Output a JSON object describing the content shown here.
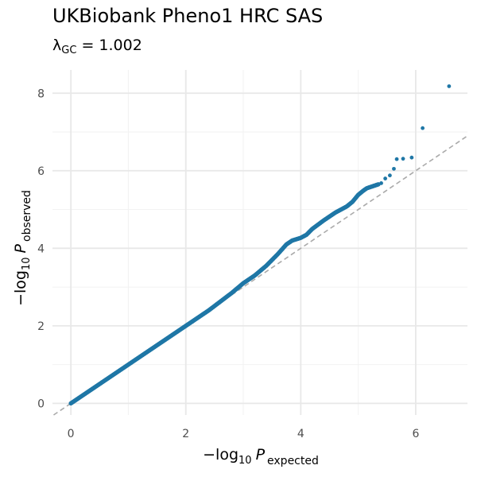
{
  "chart_data": {
    "type": "scatter",
    "title": "UKBiobank Pheno1 HRC SAS",
    "subtitle": {
      "symbol": "λ",
      "subscript": "GC",
      "value": "= 1.002"
    },
    "xlabel": {
      "prefix": "−log",
      "base": "10",
      "var": "P",
      "subscript": "expected"
    },
    "ylabel": {
      "prefix": "−log",
      "base": "10",
      "var": "P",
      "subscript": "observed"
    },
    "xlim": [
      -0.32,
      6.9
    ],
    "ylim": [
      -0.3,
      8.6
    ],
    "x_ticks": [
      0,
      2,
      4,
      6
    ],
    "y_ticks": [
      0,
      2,
      4,
      6,
      8
    ],
    "grid": true,
    "reference_line": {
      "slope": 1,
      "intercept": 0,
      "style": "dashed",
      "color": "#aaaaaa"
    },
    "point_color": "#1f77a6",
    "dense_series": [
      [
        0,
        0
      ],
      [
        0.5,
        0.5
      ],
      [
        1.0,
        1.0
      ],
      [
        1.5,
        1.5
      ],
      [
        2.0,
        2.0
      ],
      [
        2.4,
        2.4
      ],
      [
        2.8,
        2.85
      ],
      [
        3.0,
        3.1
      ],
      [
        3.2,
        3.3
      ],
      [
        3.4,
        3.55
      ],
      [
        3.6,
        3.85
      ],
      [
        3.75,
        4.1
      ],
      [
        3.85,
        4.2
      ],
      [
        4.0,
        4.27
      ],
      [
        4.1,
        4.35
      ],
      [
        4.2,
        4.5
      ],
      [
        4.4,
        4.72
      ],
      [
        4.6,
        4.92
      ],
      [
        4.8,
        5.08
      ],
      [
        4.9,
        5.2
      ],
      [
        5.0,
        5.38
      ],
      [
        5.1,
        5.5
      ],
      [
        5.15,
        5.55
      ],
      [
        5.25,
        5.6
      ],
      [
        5.35,
        5.65
      ]
    ],
    "sparse_points": [
      [
        5.4,
        5.68
      ],
      [
        5.47,
        5.8
      ],
      [
        5.55,
        5.88
      ],
      [
        5.62,
        6.05
      ],
      [
        5.67,
        6.3
      ],
      [
        5.78,
        6.31
      ],
      [
        5.93,
        6.34
      ],
      [
        6.12,
        7.1
      ],
      [
        6.58,
        8.18
      ]
    ]
  }
}
